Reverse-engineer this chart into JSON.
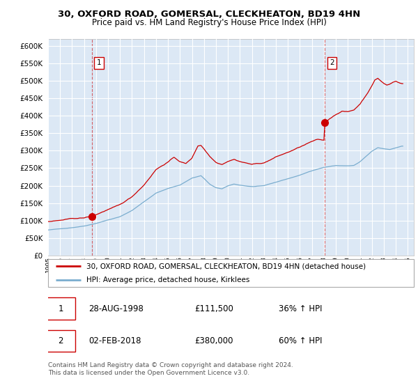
{
  "title_line1": "30, OXFORD ROAD, GOMERSAL, CLECKHEATON, BD19 4HN",
  "title_line2": "Price paid vs. HM Land Registry's House Price Index (HPI)",
  "plot_bg_color": "#dce8f5",
  "fig_bg_color": "#ffffff",
  "red_line_color": "#cc0000",
  "blue_line_color": "#7aadcf",
  "dashed_line_color": "#cc0000",
  "grid_color": "#c8d8e8",
  "ylim": [
    0,
    620000
  ],
  "yticks": [
    0,
    50000,
    100000,
    150000,
    200000,
    250000,
    300000,
    350000,
    400000,
    450000,
    500000,
    550000,
    600000
  ],
  "purchase1_year": 1998.67,
  "purchase1_price": 111500,
  "purchase1_label": "1",
  "purchase2_year": 2018.08,
  "purchase2_price": 380000,
  "purchase2_label": "2",
  "legend_red": "30, OXFORD ROAD, GOMERSAL, CLECKHEATON, BD19 4HN (detached house)",
  "legend_blue": "HPI: Average price, detached house, Kirklees",
  "table_row1": [
    "1",
    "28-AUG-1998",
    "£111,500",
    "36% ↑ HPI"
  ],
  "table_row2": [
    "2",
    "02-FEB-2018",
    "£380,000",
    "60% ↑ HPI"
  ],
  "footer": "Contains HM Land Registry data © Crown copyright and database right 2024.\nThis data is licensed under the Open Government Licence v3.0.",
  "xlim_start": 1995.0,
  "xlim_end": 2025.5
}
